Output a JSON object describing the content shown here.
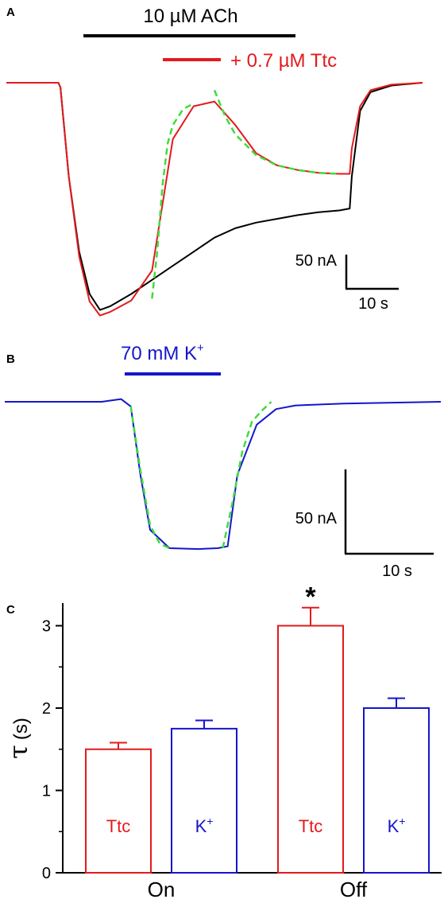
{
  "panels": {
    "a": {
      "letter": "A",
      "drug_bar_label": "10 µM ACh",
      "legend_red": "+ 0.7 µM Ttc",
      "scale_current": "50 nA",
      "scale_time": "10 s"
    },
    "b": {
      "letter": "B",
      "drug_bar_label_main": "70 mM K",
      "drug_bar_label_sup": "+",
      "scale_current": "50 nA",
      "scale_time": "10 s"
    },
    "c": {
      "letter": "C"
    }
  },
  "colors": {
    "control_trace": "#000000",
    "ttc": "#e41a1c",
    "k": "#1515cc",
    "fit": "#3ddc3d"
  },
  "chart_data": [
    {
      "type": "line",
      "panel": "A",
      "x_unit": "s",
      "y_unit": "nA",
      "x": [
        0,
        5,
        5.2,
        6,
        7,
        8,
        9,
        10,
        12,
        14,
        16,
        18,
        20,
        22,
        24,
        26,
        28,
        30,
        32,
        33,
        33.2,
        34,
        35,
        37,
        40
      ],
      "series": [
        {
          "name": "",
          "color_key": "control_trace",
          "values": [
            0,
            0,
            -5,
            -100,
            -180,
            -225,
            -242,
            -238,
            -225,
            -210,
            -195,
            -180,
            -165,
            -155,
            -149,
            -145,
            -141,
            -138,
            -136,
            -134,
            -100,
            -30,
            -10,
            -3,
            0
          ]
        },
        {
          "name": "",
          "color_key": "ttc",
          "values": [
            0,
            0,
            -5,
            -100,
            -185,
            -233,
            -248,
            -244,
            -232,
            -200,
            -60,
            -25,
            -20,
            -45,
            -75,
            -88,
            -93,
            -96,
            -97,
            -97,
            -70,
            -25,
            -8,
            -2,
            0
          ]
        }
      ],
      "fits": [
        {
          "color_key": "fit",
          "x": [
            14,
            14.5,
            15,
            15.5,
            16,
            17,
            18
          ],
          "values": [
            -230,
            -180,
            -110,
            -65,
            -45,
            -28,
            -22
          ]
        },
        {
          "color_key": "fit",
          "x": [
            20,
            21,
            22,
            24,
            26,
            28,
            30,
            32
          ],
          "values": [
            -8,
            -35,
            -55,
            -77,
            -88,
            -93,
            -96,
            -97
          ]
        }
      ],
      "annotations": {
        "drug_bar": "10 µM ACh",
        "legend": "+ 0.7 µM Ttc"
      },
      "scale_bar": {
        "current": "50 nA",
        "time": "10 s"
      }
    },
    {
      "type": "line",
      "panel": "B",
      "x_unit": "s",
      "y_unit": "nA",
      "x": [
        0,
        10,
        12,
        13,
        14,
        15,
        17,
        20,
        22,
        23,
        24,
        26,
        28,
        30,
        35,
        40,
        45
      ],
      "series": [
        {
          "name": "",
          "color_key": "k",
          "values": [
            0,
            0,
            3,
            -5,
            -80,
            -140,
            -160,
            -161,
            -160,
            -158,
            -80,
            -25,
            -8,
            -4,
            -2,
            -1,
            0
          ]
        }
      ],
      "fits": [
        {
          "color_key": "fit",
          "x": [
            13,
            14,
            15,
            16,
            17
          ],
          "values": [
            -5,
            -75,
            -135,
            -155,
            -160
          ]
        },
        {
          "color_key": "fit",
          "x": [
            22.5,
            23.5,
            24.5,
            25.5,
            26.5,
            27.5
          ],
          "values": [
            -160,
            -110,
            -55,
            -22,
            -10,
            0
          ]
        }
      ],
      "annotations": {
        "drug_bar": "70 mM K+"
      },
      "scale_bar": {
        "current": "50 nA",
        "time": "10 s"
      }
    },
    {
      "type": "bar",
      "panel": "C",
      "categories": [
        "On",
        "Off"
      ],
      "series": [
        {
          "name": "Ttc",
          "label_main": "Ttc",
          "label_sup": "",
          "color_key": "ttc",
          "values": [
            1.5,
            3.0
          ],
          "errors": [
            0.08,
            0.22
          ]
        },
        {
          "name": "K+",
          "label_main": "K",
          "label_sup": "+",
          "color_key": "k",
          "values": [
            1.75,
            2.0
          ],
          "errors": [
            0.1,
            0.12
          ]
        }
      ],
      "ylabel": "τ (s)",
      "ylabel_symbol": "τ",
      "ylabel_unit": "(s)",
      "ylim": [
        0,
        3.3
      ],
      "yticks": [
        0,
        1,
        2,
        3
      ],
      "significance": {
        "category": "Off",
        "series": "Ttc",
        "mark": "*"
      }
    }
  ]
}
